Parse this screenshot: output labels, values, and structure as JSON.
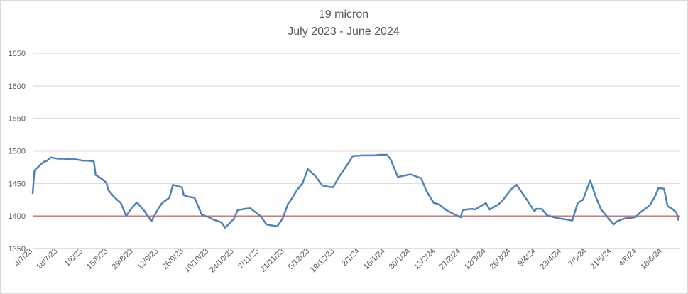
{
  "chart_data": {
    "type": "line",
    "title": "19 micron",
    "subtitle": "July 2023 - June 2024",
    "xlabel": "",
    "ylabel": "",
    "ylim": [
      1350,
      1650
    ],
    "yticks": [
      1350,
      1400,
      1450,
      1500,
      1550,
      1600,
      1650
    ],
    "xlim": [
      "2023-07-04",
      "2024-06-28"
    ],
    "xticks": [
      "4/7/23",
      "18/7/23",
      "1/8/23",
      "15/8/23",
      "29/8/23",
      "12/9/23",
      "26/9/23",
      "10/10/23",
      "24/10/23",
      "7/11/23",
      "21/11/23",
      "5/12/23",
      "19/12/23",
      "2/1/24",
      "16/1/24",
      "30/1/24",
      "13/2/24",
      "27/2/24",
      "12/3/24",
      "26/3/24",
      "9/4/24",
      "23/4/24",
      "7/5/24",
      "21/5/24",
      "4/6/24",
      "18/6/24"
    ],
    "grid": true,
    "reference_lines": [
      {
        "y": 1500,
        "color": "#c0504d"
      },
      {
        "y": 1400,
        "color": "#c0504d"
      }
    ],
    "line_color": "#4f81bd",
    "series": [
      {
        "x": [
          "2023-07-04",
          "2023-07-05",
          "2023-07-07",
          "2023-07-10",
          "2023-07-12",
          "2023-07-14",
          "2023-07-18",
          "2023-07-21",
          "2023-07-25",
          "2023-07-28",
          "2023-08-01",
          "2023-08-04",
          "2023-08-07",
          "2023-08-08",
          "2023-08-11",
          "2023-08-14",
          "2023-08-15",
          "2023-08-18",
          "2023-08-22",
          "2023-08-25",
          "2023-08-28",
          "2023-08-31",
          "2023-09-04",
          "2023-09-05",
          "2023-09-08",
          "2023-09-12",
          "2023-09-14",
          "2023-09-18",
          "2023-09-20",
          "2023-09-25",
          "2023-09-26",
          "2023-09-28",
          "2023-10-02",
          "2023-10-06",
          "2023-10-10",
          "2023-10-12",
          "2023-10-17",
          "2023-10-19",
          "2023-10-24",
          "2023-10-26",
          "2023-10-30",
          "2023-11-02",
          "2023-11-08",
          "2023-11-11",
          "2023-11-17",
          "2023-11-20",
          "2023-11-23",
          "2023-11-24",
          "2023-11-28",
          "2023-12-01",
          "2023-12-04",
          "2023-12-08",
          "2023-12-12",
          "2023-12-15",
          "2023-12-18",
          "2023-12-21",
          "2023-12-25",
          "2023-12-29",
          "2024-01-03",
          "2024-01-06",
          "2024-01-10",
          "2024-01-13",
          "2024-01-17",
          "2024-01-19",
          "2024-01-23",
          "2024-01-30",
          "2024-02-05",
          "2024-02-08",
          "2024-02-12",
          "2024-02-15",
          "2024-02-19",
          "2024-02-23",
          "2024-02-27",
          "2024-02-28",
          "2024-03-04",
          "2024-03-06",
          "2024-03-12",
          "2024-03-14",
          "2024-03-19",
          "2024-03-21",
          "2024-03-26",
          "2024-03-29",
          "2024-04-04",
          "2024-04-08",
          "2024-04-09",
          "2024-04-12",
          "2024-04-15",
          "2024-04-19",
          "2024-04-22",
          "2024-04-25",
          "2024-04-29",
          "2024-05-02",
          "2024-05-05",
          "2024-05-07",
          "2024-05-09",
          "2024-05-12",
          "2024-05-15",
          "2024-05-19",
          "2024-05-22",
          "2024-05-24",
          "2024-05-28",
          "2024-05-31",
          "2024-06-03",
          "2024-06-06",
          "2024-06-11",
          "2024-06-14",
          "2024-06-16",
          "2024-06-19",
          "2024-06-21",
          "2024-06-24",
          "2024-06-26",
          "2024-06-27"
        ],
        "values": [
          1435,
          1470,
          1475,
          1483,
          1485,
          1490,
          1488,
          1488,
          1487,
          1487,
          1485,
          1485,
          1484,
          1463,
          1458,
          1451,
          1440,
          1430,
          1420,
          1400,
          1412,
          1421,
          1408,
          1404,
          1392,
          1412,
          1420,
          1428,
          1448,
          1444,
          1432,
          1430,
          1428,
          1402,
          1398,
          1395,
          1390,
          1382,
          1396,
          1409,
          1411,
          1412,
          1399,
          1387,
          1384,
          1396,
          1419,
          1422,
          1440,
          1450,
          1472,
          1462,
          1447,
          1445,
          1444,
          1459,
          1475,
          1492,
          1493,
          1493,
          1493,
          1494,
          1494,
          1487,
          1460,
          1464,
          1458,
          1438,
          1420,
          1418,
          1409,
          1403,
          1398,
          1409,
          1411,
          1410,
          1420,
          1410,
          1418,
          1423,
          1441,
          1448,
          1424,
          1407,
          1411,
          1411,
          1401,
          1398,
          1396,
          1395,
          1393,
          1420,
          1425,
          1440,
          1455,
          1430,
          1410,
          1397,
          1387,
          1392,
          1396,
          1397,
          1398,
          1406,
          1416,
          1430,
          1443,
          1442,
          1415,
          1410,
          1405,
          1394
        ]
      }
    ]
  }
}
